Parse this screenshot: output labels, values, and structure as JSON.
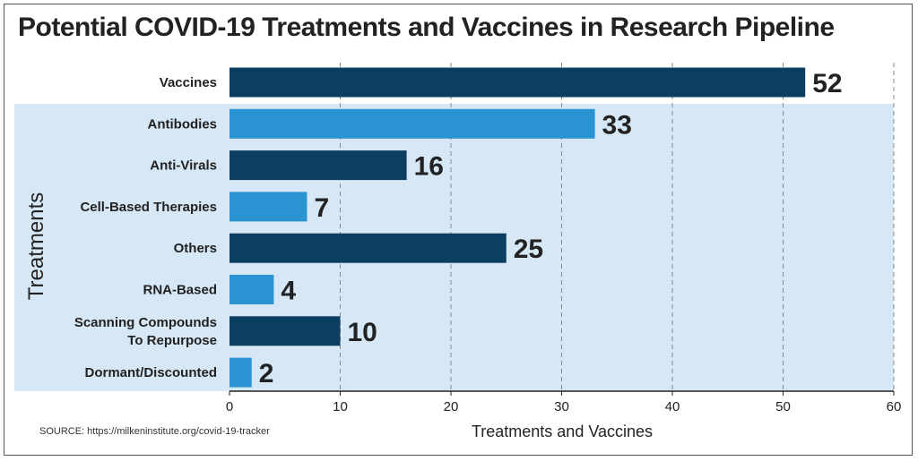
{
  "title": "Potential COVID-19 Treatments and Vaccines in Research Pipeline",
  "source": "SOURCE: https://milkeninstitute.org/covid-19-tracker",
  "colors": {
    "dark_bar": "#0c3d63",
    "light_bar": "#2a93d1",
    "treatment_band": "#d6e7f5",
    "grid": "#888888"
  },
  "chart_data": {
    "type": "bar",
    "orientation": "horizontal",
    "title": "Potential COVID-19 Treatments and Vaccines in Research Pipeline",
    "xlabel": "Treatments and Vaccines",
    "group_label": "Treatments",
    "xlim": [
      0,
      60
    ],
    "xticks": [
      0,
      10,
      20,
      30,
      40,
      50,
      60
    ],
    "grid": "vertical dashed",
    "categories": [
      "Vaccines",
      "Antibodies",
      "Anti-Virals",
      "Cell-Based Therapies",
      "Others",
      "RNA-Based",
      "Scanning Compounds\nTo Repurpose",
      "Dormant/Discounted"
    ],
    "values": [
      52,
      33,
      16,
      7,
      25,
      4,
      10,
      2
    ],
    "bar_colors": [
      "dark",
      "light",
      "dark",
      "light",
      "dark",
      "light",
      "dark",
      "light"
    ]
  }
}
